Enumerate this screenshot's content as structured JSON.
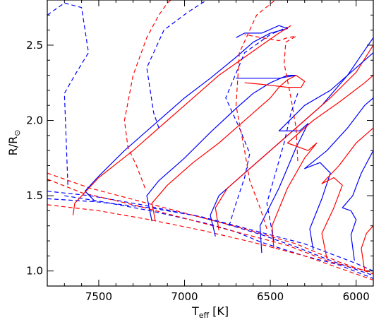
{
  "chart_data": {
    "type": "line",
    "xlabel": "T",
    "xlabel_sub": "eff",
    "xlabel_unit": "[K]",
    "ylabel": "R/R",
    "ylabel_symbol": "⊙",
    "xlim": [
      7800,
      5900
    ],
    "ylim": [
      0.9,
      2.8
    ],
    "x_reversed": true,
    "grid": false,
    "x_ticks": [
      7500,
      7000,
      6500,
      6000
    ],
    "x_tick_labels": [
      "7500",
      "7000",
      "6500",
      "6000"
    ],
    "y_ticks": [
      1.0,
      1.5,
      2.0,
      2.5
    ],
    "y_tick_labels": [
      "1.0",
      "1.5",
      "2.0",
      "2.5"
    ],
    "colors": {
      "blue": "#0000ff",
      "red": "#ff0000"
    },
    "series": [
      {
        "color": "blue",
        "dash": true,
        "x": [
          7700,
          7480,
          7200,
          6850,
          6700,
          6550,
          6300,
          6100,
          5900
        ],
        "y": [
          1.5,
          1.46,
          1.4,
          1.31,
          1.26,
          1.19,
          1.1,
          1.04,
          0.95
        ]
      },
      {
        "color": "blue",
        "dash": true,
        "x": [
          7800,
          7550,
          7250,
          6950,
          6750,
          6550,
          6350,
          6150,
          5900
        ],
        "y": [
          1.53,
          1.5,
          1.44,
          1.37,
          1.31,
          1.24,
          1.16,
          1.07,
          0.97
        ]
      },
      {
        "color": "blue",
        "dash": true,
        "x": [
          7800,
          7520,
          7200,
          6900,
          6600,
          6300,
          6000,
          5900
        ],
        "y": [
          1.48,
          1.46,
          1.42,
          1.36,
          1.27,
          1.18,
          1.05,
          1.0
        ]
      },
      {
        "color": "red",
        "dash": true,
        "x": [
          7800,
          7500,
          7200,
          6900,
          6600,
          6300,
          6050,
          5900
        ],
        "y": [
          1.44,
          1.4,
          1.34,
          1.27,
          1.19,
          1.1,
          1.0,
          0.94
        ]
      },
      {
        "color": "red",
        "dash": true,
        "x": [
          7800,
          7550,
          7250,
          6950,
          6650,
          6350,
          6100,
          5900
        ],
        "y": [
          1.65,
          1.55,
          1.46,
          1.37,
          1.28,
          1.18,
          1.06,
          0.98
        ]
      },
      {
        "color": "red",
        "dash": true,
        "x": [
          7800,
          7600,
          7300,
          7000,
          6700,
          6400,
          6150,
          5900
        ],
        "y": [
          1.61,
          1.52,
          1.44,
          1.35,
          1.26,
          1.17,
          1.06,
          0.99
        ]
      },
      {
        "color": "blue",
        "dash": false,
        "x": [
          7520,
          7580,
          7500,
          7350,
          7200,
          7000,
          6850,
          6700,
          6600,
          6500,
          6400,
          6450,
          6550,
          6650,
          6700
        ],
        "y": [
          1.46,
          1.53,
          1.63,
          1.8,
          1.95,
          2.15,
          2.28,
          2.42,
          2.52,
          2.58,
          2.61,
          2.63,
          2.58,
          2.58,
          2.55
        ]
      },
      {
        "color": "red",
        "dash": false,
        "x": [
          7650,
          7640,
          7500,
          7300,
          7100,
          6950,
          6800,
          6650,
          6550,
          6450,
          6380
        ],
        "y": [
          1.37,
          1.45,
          1.62,
          1.8,
          2.0,
          2.15,
          2.3,
          2.42,
          2.5,
          2.58,
          2.63
        ]
      },
      {
        "color": "blue",
        "dash": false,
        "x": [
          7190,
          7220,
          7150,
          7000,
          6850,
          6700,
          6600,
          6500,
          6400,
          6350,
          6450,
          6550,
          6700
        ],
        "y": [
          1.33,
          1.5,
          1.6,
          1.75,
          1.92,
          2.08,
          2.18,
          2.25,
          2.3,
          2.3,
          2.28,
          2.28,
          2.28
        ]
      },
      {
        "color": "red",
        "dash": false,
        "x": [
          7170,
          7190,
          7100,
          6950,
          6800,
          6700,
          6600,
          6500,
          6450,
          6400,
          6350,
          6300,
          6320,
          6400,
          6550,
          6650
        ],
        "y": [
          1.33,
          1.45,
          1.57,
          1.72,
          1.85,
          1.95,
          2.05,
          2.15,
          2.22,
          2.27,
          2.3,
          2.26,
          2.22,
          2.22,
          2.24,
          2.25
        ]
      },
      {
        "color": "blue",
        "dash": false,
        "x": [
          6820,
          6850,
          6800,
          6650,
          6500,
          6350,
          6200,
          6050,
          5900
        ],
        "y": [
          1.23,
          1.37,
          1.5,
          1.65,
          1.8,
          1.95,
          2.1,
          2.3,
          2.55
        ]
      },
      {
        "color": "red",
        "dash": false,
        "x": [
          6800,
          6820,
          6750,
          6600,
          6450,
          6300,
          6150,
          6000,
          5900
        ],
        "y": [
          1.27,
          1.42,
          1.55,
          1.7,
          1.85,
          2.0,
          2.15,
          2.32,
          2.5
        ]
      },
      {
        "color": "blue",
        "dash": false,
        "x": [
          6550,
          6560,
          6450,
          6350,
          6280,
          6330,
          6450,
          6300,
          6150,
          6000,
          5900
        ],
        "y": [
          1.12,
          1.3,
          1.55,
          1.82,
          1.98,
          1.93,
          1.93,
          2.1,
          2.2,
          2.35,
          2.45
        ]
      },
      {
        "color": "red",
        "dash": false,
        "x": [
          6480,
          6490,
          6400,
          6300,
          6230,
          6280,
          6400,
          6250,
          6100,
          5950,
          5900
        ],
        "y": [
          1.15,
          1.3,
          1.55,
          1.75,
          1.85,
          1.8,
          1.85,
          2.0,
          2.12,
          2.25,
          2.3
        ]
      },
      {
        "color": "blue",
        "dash": false,
        "x": [
          6250,
          6270,
          6200,
          6150,
          6210,
          6300,
          6170,
          6050,
          5950,
          5900
        ],
        "y": [
          1.14,
          1.28,
          1.48,
          1.65,
          1.72,
          1.68,
          1.8,
          1.95,
          2.1,
          2.15
        ]
      },
      {
        "color": "red",
        "dash": false,
        "x": [
          6170,
          6200,
          6130,
          6080,
          6130,
          6200,
          6100,
          6000,
          5900
        ],
        "y": [
          1.08,
          1.25,
          1.42,
          1.57,
          1.62,
          1.58,
          1.7,
          1.85,
          1.95
        ]
      },
      {
        "color": "blue",
        "dash": false,
        "x": [
          6010,
          6030,
          6000,
          6030,
          6080,
          6020,
          5970,
          5900
        ],
        "y": [
          1.07,
          1.24,
          1.34,
          1.4,
          1.42,
          1.5,
          1.65,
          1.8
        ]
      },
      {
        "color": "red",
        "dash": false,
        "x": [
          5950,
          5970,
          5940,
          5900
        ],
        "y": [
          1.0,
          1.15,
          1.25,
          1.3
        ]
      },
      {
        "color": "blue",
        "dash": true,
        "x": [
          7800,
          7700,
          7600,
          7560,
          7640,
          7700,
          7680
        ],
        "y": [
          2.7,
          2.78,
          2.75,
          2.45,
          2.3,
          2.18,
          1.57
        ]
      },
      {
        "color": "blue",
        "dash": true,
        "x": [
          7150,
          7180,
          7220,
          7120,
          6980,
          6870,
          6800,
          6780
        ],
        "y": [
          1.95,
          2.05,
          2.35,
          2.6,
          2.72,
          2.8,
          2.82,
          2.8
        ]
      },
      {
        "color": "blue",
        "dash": true,
        "x": [
          6740,
          6700,
          6650,
          6620,
          6680,
          6760,
          6650,
          6500,
          6400
        ],
        "y": [
          1.3,
          1.45,
          1.62,
          1.78,
          1.95,
          2.15,
          2.45,
          2.57,
          2.62
        ]
      },
      {
        "color": "red",
        "dash": true,
        "x": [
          7230,
          7280,
          7330,
          7350,
          7300,
          7220,
          7150,
          7100,
          7060
        ],
        "y": [
          1.55,
          1.7,
          1.82,
          2.0,
          2.3,
          2.55,
          2.7,
          2.78,
          2.82
        ]
      },
      {
        "color": "red",
        "dash": true,
        "x": [
          6520,
          6560,
          6620,
          6650,
          6700,
          6680,
          6580,
          6450
        ],
        "y": [
          1.28,
          1.42,
          1.6,
          1.8,
          2.1,
          2.45,
          2.7,
          2.82
        ]
      },
      {
        "color": "red",
        "dash": true,
        "x": [
          6340,
          6350,
          6380,
          6420,
          6410,
          6350,
          6400,
          6450,
          6550,
          6650
        ],
        "y": [
          1.73,
          1.95,
          2.15,
          2.38,
          2.52,
          2.56,
          2.55,
          2.53,
          2.55,
          2.57
        ]
      },
      {
        "color": "blue",
        "dash": true,
        "x": [
          6480,
          6520,
          6420,
          6380,
          6340
        ],
        "y": [
          1.2,
          1.45,
          1.85,
          2.05,
          2.18
        ]
      }
    ]
  }
}
